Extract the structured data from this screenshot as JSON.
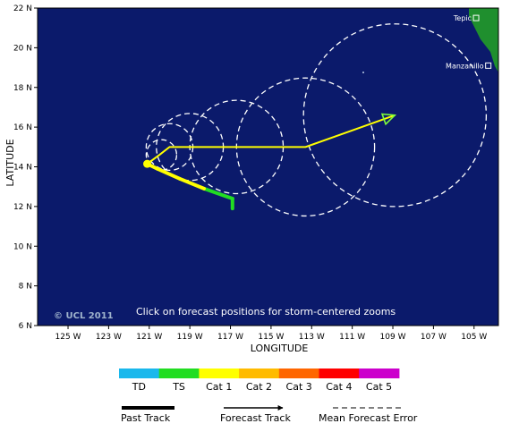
{
  "map": {
    "note": "Click on forecast positions for storm-centered zooms",
    "copyright": "© UCL 2011",
    "background_color": "#0b1a6b",
    "land_color": "#1f8f2e"
  },
  "axes": {
    "xlabel": "LONGITUDE",
    "ylabel": "LATITUDE",
    "lon_range": [
      -126.5,
      -103.8
    ],
    "lat_range": [
      6,
      22
    ],
    "x_ticks": [
      {
        "value": -125,
        "label": "125 W"
      },
      {
        "value": -123,
        "label": "123 W"
      },
      {
        "value": -121,
        "label": "121 W"
      },
      {
        "value": -119,
        "label": "119 W"
      },
      {
        "value": -117,
        "label": "117 W"
      },
      {
        "value": -115,
        "label": "115 W"
      },
      {
        "value": -113,
        "label": "113 W"
      },
      {
        "value": -111,
        "label": "111 W"
      },
      {
        "value": -109,
        "label": "109 W"
      },
      {
        "value": -107,
        "label": "107 W"
      },
      {
        "value": -105,
        "label": "105 W"
      }
    ],
    "y_ticks": [
      {
        "value": 6,
        "label": "6 N"
      },
      {
        "value": 8,
        "label": "8 N"
      },
      {
        "value": 10,
        "label": "10 N"
      },
      {
        "value": 12,
        "label": "12 N"
      },
      {
        "value": 14,
        "label": "14 N"
      },
      {
        "value": 16,
        "label": "16 N"
      },
      {
        "value": 18,
        "label": "18 N"
      },
      {
        "value": 20,
        "label": "20 N"
      },
      {
        "value": 22,
        "label": "22 N"
      }
    ]
  },
  "cities": [
    {
      "name": "Tepic",
      "lon": -104.9,
      "lat": 21.5
    },
    {
      "name": "Manzanillo",
      "lon": -104.3,
      "lat": 19.1
    }
  ],
  "past_track": [
    {
      "lon": -116.9,
      "lat": 11.9,
      "category": "TD"
    },
    {
      "lon": -116.9,
      "lat": 12.4,
      "category": "TS"
    },
    {
      "lon": -118.3,
      "lat": 12.9,
      "category": "TS"
    },
    {
      "lon": -119.5,
      "lat": 13.4,
      "category": "Cat 1"
    },
    {
      "lon": -120.6,
      "lat": 13.9,
      "category": "Cat 1"
    },
    {
      "lon": -121.1,
      "lat": 14.15,
      "category": "Cat 1"
    }
  ],
  "forecast_track": [
    {
      "lon": -121.1,
      "lat": 14.15
    },
    {
      "lon": -120.5,
      "lat": 14.6
    },
    {
      "lon": -120.0,
      "lat": 15.0
    },
    {
      "lon": -119.0,
      "lat": 15.0
    },
    {
      "lon": -116.7,
      "lat": 15.0
    },
    {
      "lon": -113.3,
      "lat": 15.0
    },
    {
      "lon": -108.9,
      "lat": 16.6
    }
  ],
  "error_circles": [
    {
      "lon": -120.4,
      "lat": 14.6,
      "radius_deg": 0.75
    },
    {
      "lon": -120.0,
      "lat": 15.0,
      "radius_deg": 1.15
    },
    {
      "lon": -119.0,
      "lat": 15.0,
      "radius_deg": 1.65
    },
    {
      "lon": -116.7,
      "lat": 15.0,
      "radius_deg": 2.3
    },
    {
      "lon": -113.3,
      "lat": 15.0,
      "radius_deg": 3.4
    },
    {
      "lon": -108.9,
      "lat": 16.6,
      "radius_deg": 4.5
    }
  ],
  "legend": {
    "categories": [
      {
        "label": "TD",
        "color": "#1ab8ec"
      },
      {
        "label": "TS",
        "color": "#22dd22"
      },
      {
        "label": "Cat 1",
        "color": "#ffff00"
      },
      {
        "label": "Cat 2",
        "color": "#ffbb00"
      },
      {
        "label": "Cat 3",
        "color": "#ff6600"
      },
      {
        "label": "Cat 4",
        "color": "#ff0000"
      },
      {
        "label": "Cat 5",
        "color": "#cc00cc"
      }
    ],
    "past_track_label": "Past Track",
    "forecast_track_label": "Forecast Track",
    "mean_error_label": "Mean Forecast Error"
  }
}
